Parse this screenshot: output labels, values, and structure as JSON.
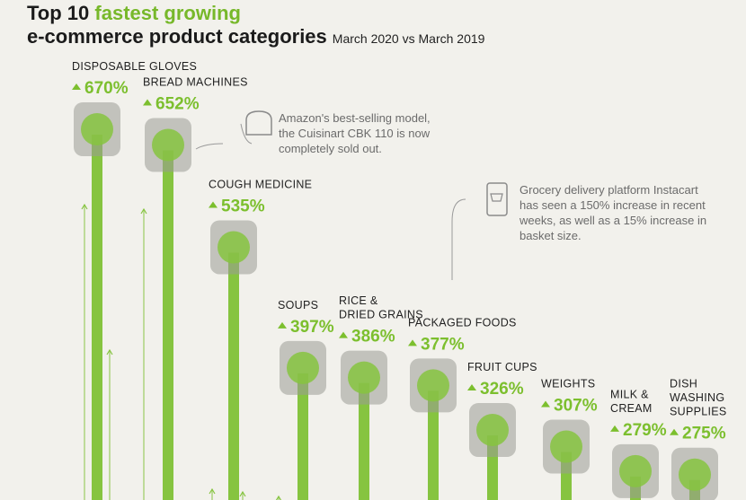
{
  "title": {
    "prefix": "Top 10 ",
    "accent": "fastest growing",
    "line2": "e-commerce product categories",
    "subtitle": "March 2020 vs March 2019"
  },
  "colors": {
    "accent": "#7cbf2e",
    "bar": "#86c440",
    "text": "#1f1f1f",
    "note": "#6b6b6b"
  },
  "chart_data": {
    "type": "bar",
    "categories": [
      [
        "DISPOSABLE GLOVES"
      ],
      [
        "BREAD MACHINES"
      ],
      [
        "COUGH MEDICINE"
      ],
      [
        "SOUPS"
      ],
      [
        "RICE &",
        "DRIED GRAINS"
      ],
      [
        "PACKAGED FOODS"
      ],
      [
        "FRUIT CUPS"
      ],
      [
        "WEIGHTS"
      ],
      [
        "MILK &",
        "CREAM"
      ],
      [
        "DISH",
        "WASHING",
        "SUPPLIES"
      ]
    ],
    "values": [
      670,
      652,
      535,
      397,
      386,
      377,
      326,
      307,
      279,
      275
    ],
    "value_labels": [
      "670%",
      "652%",
      "535%",
      "397%",
      "386%",
      "377%",
      "326%",
      "307%",
      "279%",
      "275%"
    ],
    "icons": [
      "gloves-icon",
      "bread-machine-icon",
      "medicine-box-icon",
      "soup-can-icon",
      "rice-bag-icon",
      "noodle-bowl-icon",
      "fruit-cup-icon",
      "dumbbell-icon",
      "milk-carton-icon",
      "dish-soap-icon"
    ]
  },
  "annotations": [
    {
      "icon": "bread-icon",
      "lines": [
        "Amazon's best-selling model,",
        "the Cuisinart CBK 110 is now",
        "completely sold out."
      ]
    },
    {
      "icon": "shopping-cart-phone-icon",
      "lines": [
        "Grocery delivery platform Instacart",
        "has seen a 150% increase in recent",
        "weeks, as well as a 15% increase in",
        "basket size."
      ]
    }
  ]
}
